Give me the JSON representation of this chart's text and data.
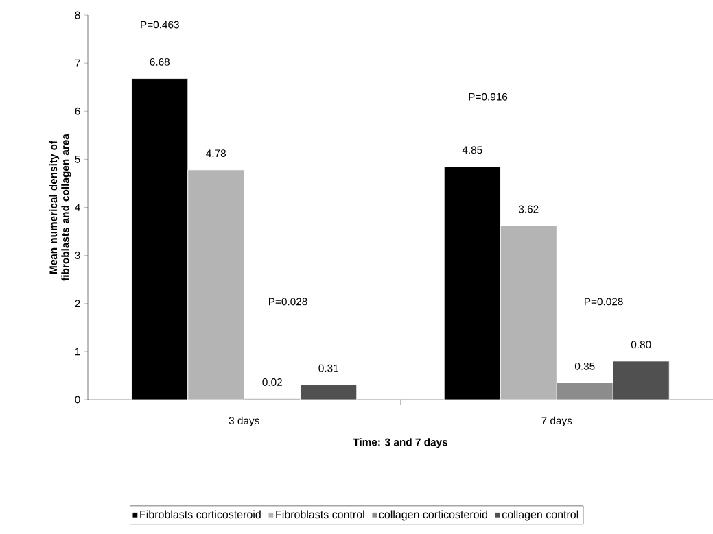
{
  "chart_data": {
    "type": "bar",
    "xlabel": "Time: 3 and 7 days",
    "ylabel": "Mean  numerical density of fibroblasts and collagen area",
    "categories": [
      "3 days",
      "7 days"
    ],
    "series": [
      {
        "name": "Fibroblasts corticosteroid",
        "color": "#000000",
        "values": [
          6.68,
          4.85
        ],
        "value_labels": [
          "6.68",
          "4.85"
        ]
      },
      {
        "name": "Fibroblasts control",
        "color": "#b4b4b4",
        "values": [
          4.78,
          3.62
        ],
        "value_labels": [
          "4.78",
          "3.62"
        ]
      },
      {
        "name": "collagen corticosteroid",
        "color": "#8c8c8c",
        "values": [
          0.02,
          0.35
        ],
        "value_labels": [
          "0.02",
          "0.35"
        ]
      },
      {
        "name": "collagen control",
        "color": "#505050",
        "values": [
          0.31,
          0.8
        ],
        "value_labels": [
          "0.31",
          "0.80"
        ]
      }
    ],
    "ylim": [
      0,
      8
    ],
    "yticks": [
      0,
      1,
      2,
      3,
      4,
      5,
      6,
      7,
      8
    ],
    "annotations": [
      "P=0.463",
      "P=0.916",
      "P=0.028",
      "P=0.028"
    ],
    "grid": false,
    "legend": "bottom"
  }
}
